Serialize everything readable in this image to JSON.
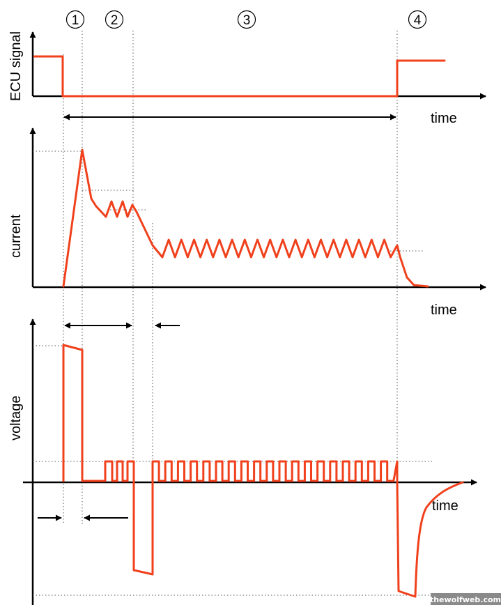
{
  "phases": [
    "1",
    "2",
    "3",
    "4"
  ],
  "ecu_panel": {
    "ylabel": "ECU signal",
    "xlabel": "time"
  },
  "current_panel": {
    "ylabel": "current",
    "xlabel": "time"
  },
  "voltage_panel": {
    "ylabel": "voltage",
    "xlabel": "time"
  },
  "colors": {
    "signal": "#f0401c",
    "axis": "#000000",
    "guides": "#555555"
  },
  "watermark": "thewolfweb.com"
}
